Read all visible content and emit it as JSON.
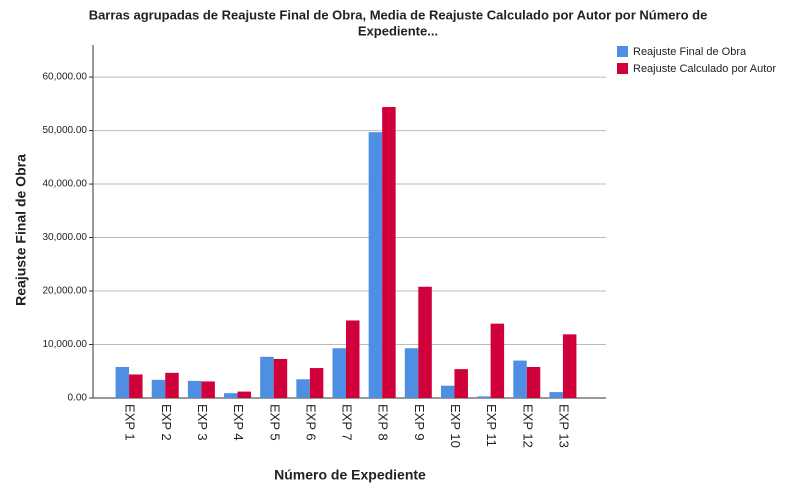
{
  "chart_data": {
    "type": "bar",
    "title": [
      "Barras agrupadas de Reajuste Final de Obra, Media de Reajuste Calculado por Autor por Número de",
      "Expediente..."
    ],
    "x_label": "Número de Expediente",
    "y_label": "Reajuste Final de Obra",
    "categories": [
      "EXP 1",
      "EXP 2",
      "EXP 3",
      "EXP 4",
      "EXP 5",
      "EXP 6",
      "EXP 7",
      "EXP 8",
      "EXP 9",
      "EXP 10",
      "EXP 11",
      "EXP 12",
      "EXP 13"
    ],
    "series": [
      {
        "name": "Reajuste Final de Obra",
        "color": "#4f8fe3",
        "values": [
          5800,
          3400,
          3200,
          900,
          7700,
          3500,
          9300,
          49700,
          9300,
          2300,
          300,
          7000,
          1100
        ]
      },
      {
        "name": "Reajuste Calculado por Autor",
        "color": "#d0003b",
        "values": [
          4400,
          4700,
          3100,
          1200,
          7300,
          5600,
          14500,
          54400,
          20800,
          5400,
          13900,
          5800,
          11900
        ]
      }
    ],
    "ylim": [
      0,
      66000
    ],
    "yticks": [
      {
        "value": 0,
        "label": "0.00"
      },
      {
        "value": 10000,
        "label": "10,000.00"
      },
      {
        "value": 20000,
        "label": "20,000.00"
      },
      {
        "value": 30000,
        "label": "30,000.00"
      },
      {
        "value": 40000,
        "label": "40,000.00"
      },
      {
        "value": 50000,
        "label": "50,000.00"
      },
      {
        "value": 60000,
        "label": "60,000.00"
      }
    ],
    "grid": true,
    "legend": "top-right"
  }
}
